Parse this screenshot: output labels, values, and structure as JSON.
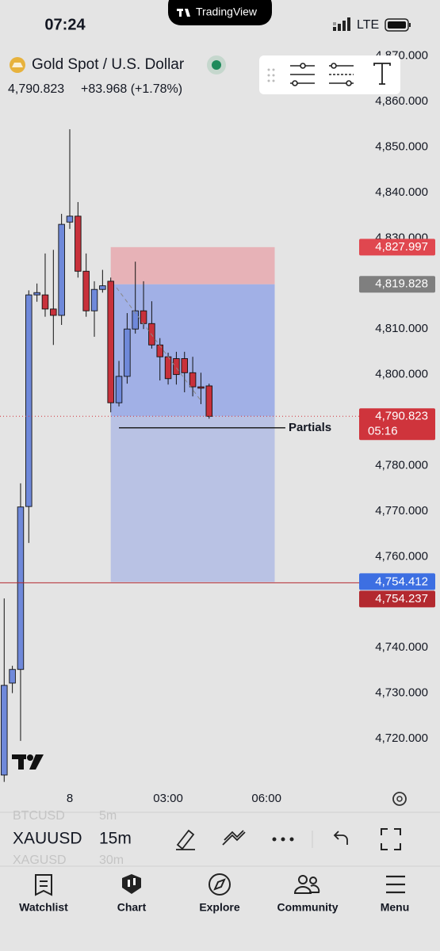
{
  "status_bar": {
    "time": "07:24",
    "network": "LTE"
  },
  "app_banner": "TradingView",
  "header": {
    "title": "Gold Spot / U.S. Dollar",
    "price": "4,790.823",
    "change": "+83.968 (+1.78%)"
  },
  "chart_data": {
    "type": "candlestick",
    "x": [
      0,
      1,
      2,
      3,
      4,
      5,
      6,
      7,
      8,
      9,
      10,
      11,
      12,
      13,
      14,
      15,
      16,
      17,
      18,
      19,
      20,
      21,
      22,
      23,
      24,
      25
    ],
    "open": [
      4712.0,
      4732.2,
      4735.2,
      4771.0,
      4817.5,
      4817.5,
      4814.4,
      4813.0,
      4833.5,
      4834.8,
      4822.7,
      4814.0,
      4818.7,
      4820.5,
      4793.8,
      4799.6,
      4810.0,
      4814.0,
      4811.2,
      4806.5,
      4803.9,
      4803.5,
      4803.5,
      4800.4,
      4797.3,
      4797.5
    ],
    "high": [
      4750.8,
      4736.0,
      4776.1,
      4818.5,
      4820.0,
      4826.6,
      4827.4,
      4835.3,
      4853.9,
      4837.9,
      4826.6,
      4820.5,
      4823.0,
      4821.3,
      4803.0,
      4813.5,
      4824.8,
      4820.5,
      4816.1,
      4808.0,
      4804.8,
      4805.0,
      4805.0,
      4803.9,
      4800.4,
      4798.0
    ],
    "low": [
      4710.5,
      4730.0,
      4719.5,
      4763.0,
      4816.0,
      4812.7,
      4806.5,
      4810.9,
      4832.0,
      4821.3,
      4812.7,
      4808.3,
      4818.0,
      4791.7,
      4793.0,
      4798.0,
      4809.0,
      4810.0,
      4805.7,
      4798.7,
      4797.8,
      4797.8,
      4796.1,
      4795.2,
      4793.5,
      4790.3
    ],
    "close": [
      4731.7,
      4735.2,
      4770.9,
      4817.5,
      4818.0,
      4814.4,
      4813.0,
      4833.0,
      4834.8,
      4822.7,
      4814.0,
      4818.7,
      4819.5,
      4793.8,
      4799.6,
      4810.0,
      4814.0,
      4811.2,
      4806.5,
      4803.9,
      4799.1,
      4800.0,
      4800.4,
      4797.3,
      4797.0,
      4790.823
    ],
    "up_color": "#6f89da",
    "down_color": "#c8313b",
    "xlim": [
      -0.51,
      43.3
    ],
    "xticks": [
      {
        "value": 8,
        "label": "8"
      },
      {
        "value": 20,
        "label": "03:00"
      },
      {
        "value": 32,
        "label": "06:00"
      }
    ],
    "ylim": [
      4710.25,
      4871.85
    ],
    "yticks": [
      {
        "value": 4720,
        "label": "4,720.000"
      },
      {
        "value": 4730,
        "label": "4,730.000"
      },
      {
        "value": 4740,
        "label": "4,740.000"
      },
      {
        "value": 4750,
        "label": "4,750.000"
      },
      {
        "value": 4760,
        "label": "4,760.000"
      },
      {
        "value": 4770,
        "label": "4,770.000"
      },
      {
        "value": 4780,
        "label": "4,780.000"
      },
      {
        "value": 4790,
        "label": "4,790.000"
      },
      {
        "value": 4800,
        "label": "4,800.000"
      },
      {
        "value": 4810,
        "label": "4,810.000"
      },
      {
        "value": 4820,
        "label": "4,820.000"
      },
      {
        "value": 4830,
        "label": "4,830.000"
      },
      {
        "value": 4840,
        "label": "4,840.000"
      },
      {
        "value": 4850,
        "label": "4,850.000"
      },
      {
        "value": 4860,
        "label": "4,860.000"
      },
      {
        "value": 4870,
        "label": "4,870.000"
      }
    ],
    "position": {
      "x_start": 13,
      "x_end": 33,
      "stop": {
        "value": 4827.997,
        "label": "4,827.997",
        "color": "#e0474f"
      },
      "entry": {
        "value": 4819.828,
        "label": "4,819.828",
        "color": "#7f7f7f"
      },
      "target": {
        "value": 4754.412,
        "label": "4,754.412",
        "color": "#3d6fe2"
      }
    },
    "last_price": {
      "value": 4790.823,
      "label": "4,790.823",
      "countdown": "05:16",
      "color": "#cf343c"
    },
    "alert_line": {
      "value": 4754.237,
      "label": "4,754.237",
      "color": "#b3292f"
    },
    "annotation": {
      "text": "Partials",
      "value": 4788.3,
      "x_start": 14,
      "x_end": 34.3
    }
  },
  "toolbar": {
    "symbol": "XAUUSD",
    "interval": "15m",
    "prev_symbol": "BTCUSD",
    "prev_interval": "5m",
    "next_symbol": "XAGUSD",
    "next_interval": "30m"
  },
  "nav": [
    "Watchlist",
    "Chart",
    "Explore",
    "Community",
    "Menu"
  ]
}
